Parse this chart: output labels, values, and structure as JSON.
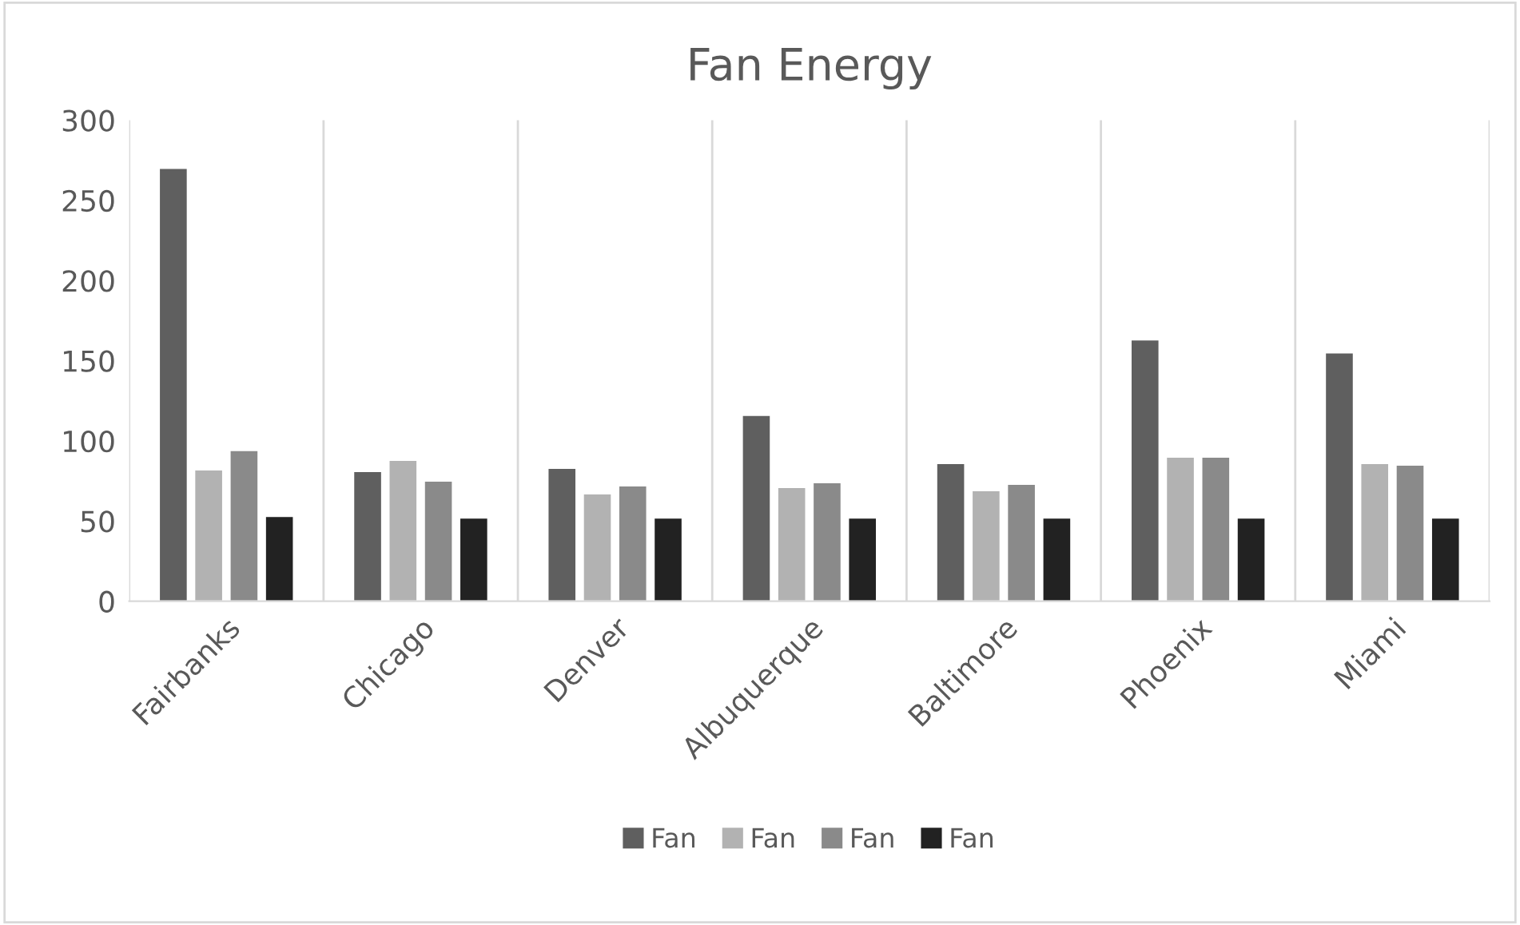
{
  "chart_data": {
    "type": "bar",
    "title": "Fan Energy",
    "categories": [
      "Fairbanks",
      "Chicago",
      "Denver",
      "Albuquerque",
      "Baltimore",
      "Phoenix",
      "Miami"
    ],
    "series": [
      {
        "name": "Fan",
        "color": "#5f5f5f",
        "values": [
          270,
          81,
          83,
          116,
          86,
          163,
          155
        ]
      },
      {
        "name": "Fan",
        "color": "#b2b2b2",
        "values": [
          82,
          88,
          67,
          71,
          69,
          90,
          86
        ]
      },
      {
        "name": "Fan",
        "color": "#8a8a8a",
        "values": [
          94,
          75,
          72,
          74,
          73,
          90,
          85
        ]
      },
      {
        "name": "Fan",
        "color": "#222222",
        "values": [
          53,
          52,
          52,
          52,
          52,
          52,
          52
        ]
      }
    ],
    "ylim": [
      0,
      300
    ],
    "yticks": [
      0,
      50,
      100,
      150,
      200,
      250,
      300
    ],
    "grid": "x",
    "legend": "bottom"
  }
}
